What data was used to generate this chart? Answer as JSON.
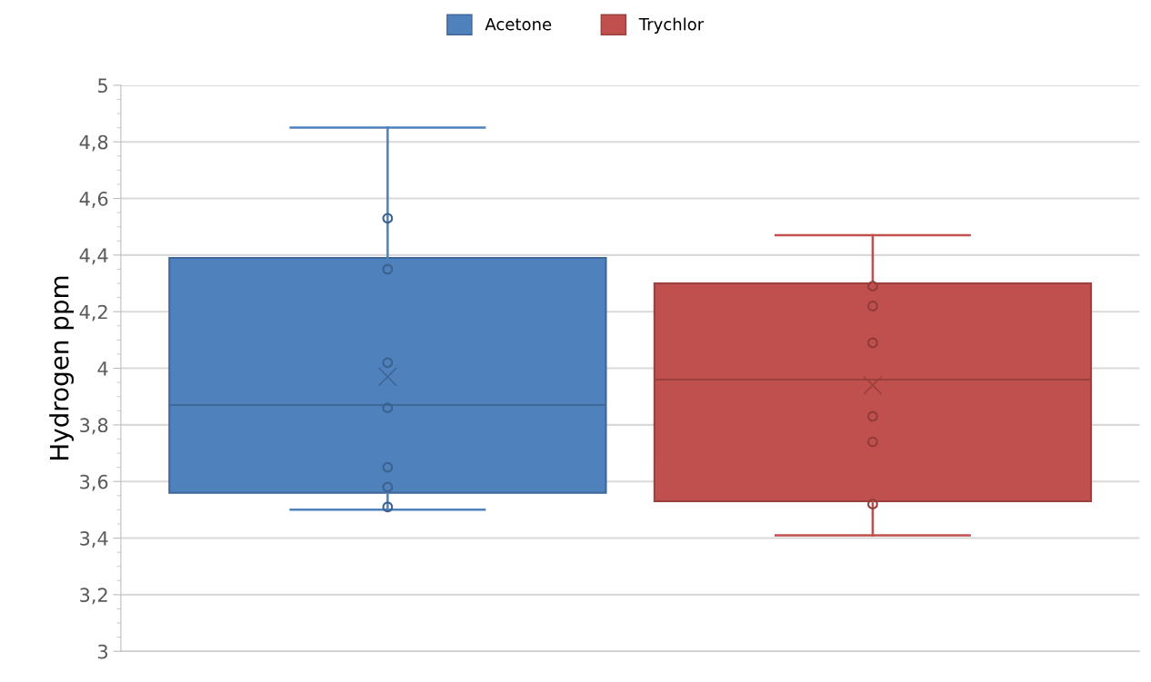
{
  "chart_data": {
    "type": "box",
    "ylabel": "Hydrogen ppm",
    "categories": [
      null,
      null
    ],
    "series": [
      {
        "name": "Acetone",
        "color": "#4f81bd",
        "boxes": [
          {
            "low": 3.5,
            "q1": 3.56,
            "median": 3.87,
            "q3": 4.39,
            "high": 4.85,
            "mean": 3.97
          },
          null
        ]
      },
      {
        "name": "Trychlor",
        "color": "#c0504d",
        "boxes": [
          null,
          {
            "low": 3.41,
            "q1": 3.53,
            "median": 3.96,
            "q3": 4.3,
            "high": 4.47,
            "mean": 3.94
          }
        ]
      },
      {
        "type": "scatter",
        "colors": [
          "#3b618e",
          "#903c3a"
        ],
        "values": [
          4.53,
          4.29
        ]
      },
      {
        "type": "scatter",
        "colors": [
          "#3b618e",
          "#903c3a"
        ],
        "values": [
          4.35,
          4.22
        ]
      },
      {
        "type": "scatter",
        "colors": [
          "#3b618e",
          "#903c3a"
        ],
        "values": [
          4.02,
          4.09
        ]
      },
      {
        "type": "scatter",
        "colors": [
          "#3b618e",
          "#903c3a"
        ],
        "values": [
          3.86,
          3.83
        ]
      },
      {
        "type": "scatter",
        "colors": [
          "#3b618e",
          "#903c3a"
        ],
        "values": [
          3.65,
          3.74
        ]
      },
      {
        "type": "scatter",
        "colors": [
          "#3b618e",
          "#903c3a"
        ],
        "values": [
          3.58,
          3.52
        ]
      },
      {
        "type": "scatter",
        "colors": [
          "#3b618e",
          "#903c3a"
        ],
        "values": [
          3.51,
          null
        ]
      }
    ],
    "ylim": [
      3,
      5
    ],
    "yticks": [
      {
        "value": 3,
        "label": "3"
      },
      {
        "value": 3.2,
        "label": "3,2"
      },
      {
        "value": 3.4,
        "label": "3,4"
      },
      {
        "value": 3.6,
        "label": "3,6"
      },
      {
        "value": 3.8,
        "label": "3,8"
      },
      {
        "value": 4,
        "label": "4"
      },
      {
        "value": 4.2,
        "label": "4,2"
      },
      {
        "value": 4.4,
        "label": "4,4"
      },
      {
        "value": 4.6,
        "label": "4,6"
      },
      {
        "value": 4.8,
        "label": "4,8"
      },
      {
        "value": 5,
        "label": "5"
      }
    ],
    "grid": "y",
    "legend": "top",
    "marker": "circle"
  }
}
